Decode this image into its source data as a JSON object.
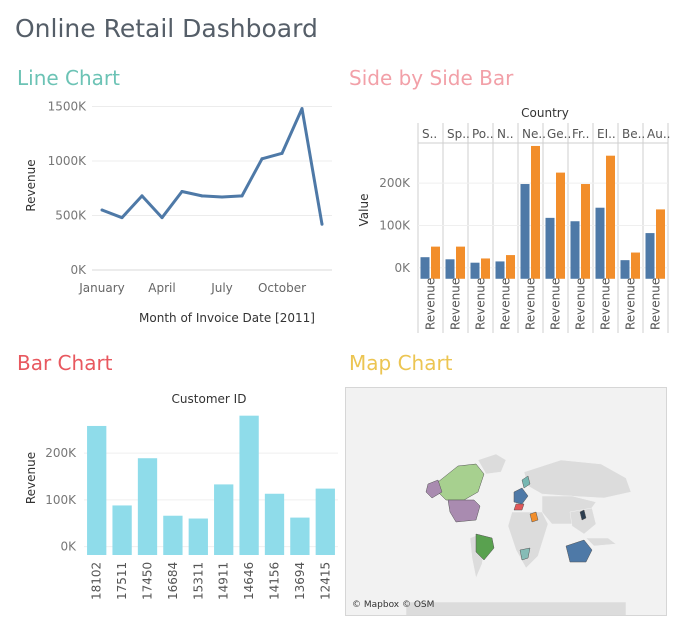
{
  "dashboard_title": "Online Retail Dashboard",
  "panels": {
    "line": "Line Chart",
    "side": "Side by Side Bar",
    "bar": "Bar Chart",
    "map": "Map Chart"
  },
  "map_attribution": "© Mapbox © OSM",
  "colors": {
    "line": "#4e79a7",
    "revenue_blue": "#4e79a7",
    "revenue_orange": "#f28e2b",
    "bar_cyan": "#8fdcea",
    "title_teal": "#6cc3b5",
    "title_pink": "#f2a0a8",
    "title_red": "#e8585f",
    "title_yellow": "#ecc552"
  },
  "chart_data": [
    {
      "id": "line",
      "type": "line",
      "title": "",
      "xlabel": "Month of Invoice Date [2011]",
      "ylabel": "Revenue",
      "x_tick_labels": [
        {
          "month": 1,
          "label": "January"
        },
        {
          "month": 4,
          "label": "April"
        },
        {
          "month": 7,
          "label": "July"
        },
        {
          "month": 10,
          "label": "October"
        }
      ],
      "y_ticks": [
        0,
        500000,
        1000000,
        1500000
      ],
      "y_tick_labels": [
        "0K",
        "500K",
        "1000K",
        "1500K"
      ],
      "ylim": [
        0,
        1550000
      ],
      "xlim": [
        0.5,
        12.5
      ],
      "x": [
        1,
        2,
        3,
        4,
        5,
        6,
        7,
        8,
        9,
        10,
        11,
        12
      ],
      "values": [
        550000,
        480000,
        680000,
        480000,
        720000,
        680000,
        670000,
        680000,
        1020000,
        1070000,
        1480000,
        420000
      ]
    },
    {
      "id": "side",
      "type": "bar",
      "title": "Country",
      "ylabel": "Value",
      "categories": [
        "S..",
        "Sp..",
        "Po..",
        "N..",
        "Ne..",
        "Ge..",
        "Fr..",
        "EI..",
        "Be..",
        "Au.."
      ],
      "x_tick_labels": [
        "Revenue",
        "Revenue",
        "Revenue",
        "Revenue",
        "Revenue",
        "Revenue",
        "Revenue",
        "Revenue",
        "Revenue",
        "Revenue"
      ],
      "y_ticks": [
        0,
        100000,
        200000
      ],
      "y_tick_labels": [
        "0K",
        "100K",
        "200K"
      ],
      "ylim": [
        -10000,
        295000
      ],
      "series": [
        {
          "values": [
            25000,
            20000,
            12000,
            15000,
            198000,
            118000,
            110000,
            142000,
            18000,
            82000
          ]
        },
        {
          "values": [
            50000,
            50000,
            22000,
            30000,
            288000,
            225000,
            198000,
            265000,
            36000,
            138000
          ]
        }
      ]
    },
    {
      "id": "bar",
      "type": "bar",
      "title": "Customer ID",
      "ylabel": "Revenue",
      "categories": [
        "18102",
        "17511",
        "17450",
        "16684",
        "15311",
        "14911",
        "14646",
        "14156",
        "13694",
        "12415"
      ],
      "y_ticks": [
        0,
        100000,
        200000
      ],
      "y_tick_labels": [
        "0K",
        "100K",
        "200K"
      ],
      "ylim": [
        -18000,
        290000
      ],
      "values": [
        258000,
        88000,
        189000,
        66000,
        60000,
        133000,
        280000,
        113000,
        62000,
        124000
      ]
    }
  ]
}
